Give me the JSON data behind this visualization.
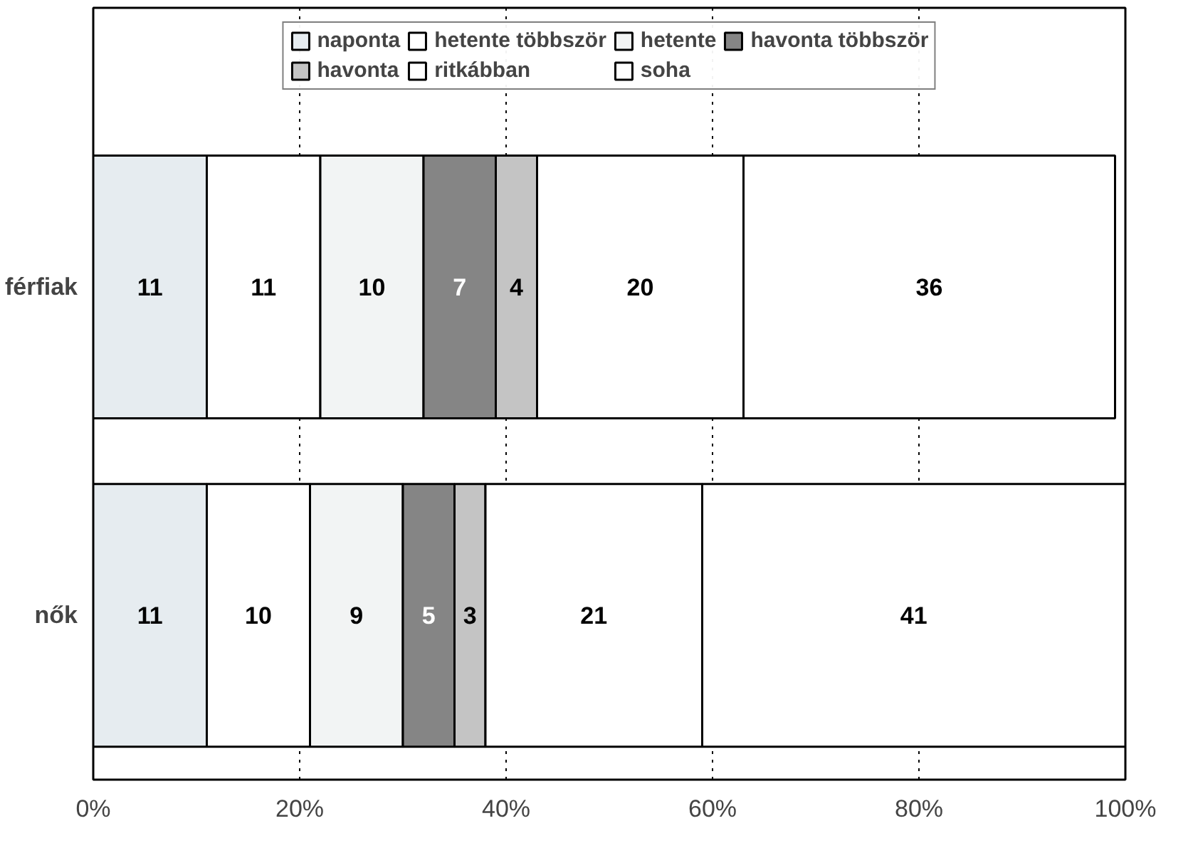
{
  "chart_data": {
    "type": "bar",
    "orientation": "horizontal",
    "stacked": true,
    "categories": [
      "férfiak",
      "nők"
    ],
    "series": [
      {
        "name": "naponta",
        "color": "#e6ecf0",
        "values": [
          11,
          11
        ]
      },
      {
        "name": "hetente többször",
        "color": "#ffffff",
        "values": [
          11,
          10
        ]
      },
      {
        "name": "hetente",
        "color": "#f2f4f4",
        "values": [
          10,
          9
        ]
      },
      {
        "name": "havonta többször",
        "color": "#858585",
        "values": [
          7,
          5
        ]
      },
      {
        "name": "havonta",
        "color": "#c4c4c4",
        "values": [
          4,
          3
        ]
      },
      {
        "name": "ritkábban",
        "color": "#ffffff",
        "values": [
          20,
          21
        ]
      },
      {
        "name": "soha",
        "color": "#ffffff",
        "values": [
          36,
          41
        ]
      }
    ],
    "xlim": [
      0,
      100
    ],
    "xticks": [
      {
        "value": 0,
        "label": "0%"
      },
      {
        "value": 20,
        "label": "20%"
      },
      {
        "value": 40,
        "label": "40%"
      },
      {
        "value": 60,
        "label": "60%"
      },
      {
        "value": 80,
        "label": "80%"
      },
      {
        "value": 100,
        "label": "100%"
      }
    ],
    "data_labels": true,
    "grid": "x",
    "legend": "top"
  }
}
